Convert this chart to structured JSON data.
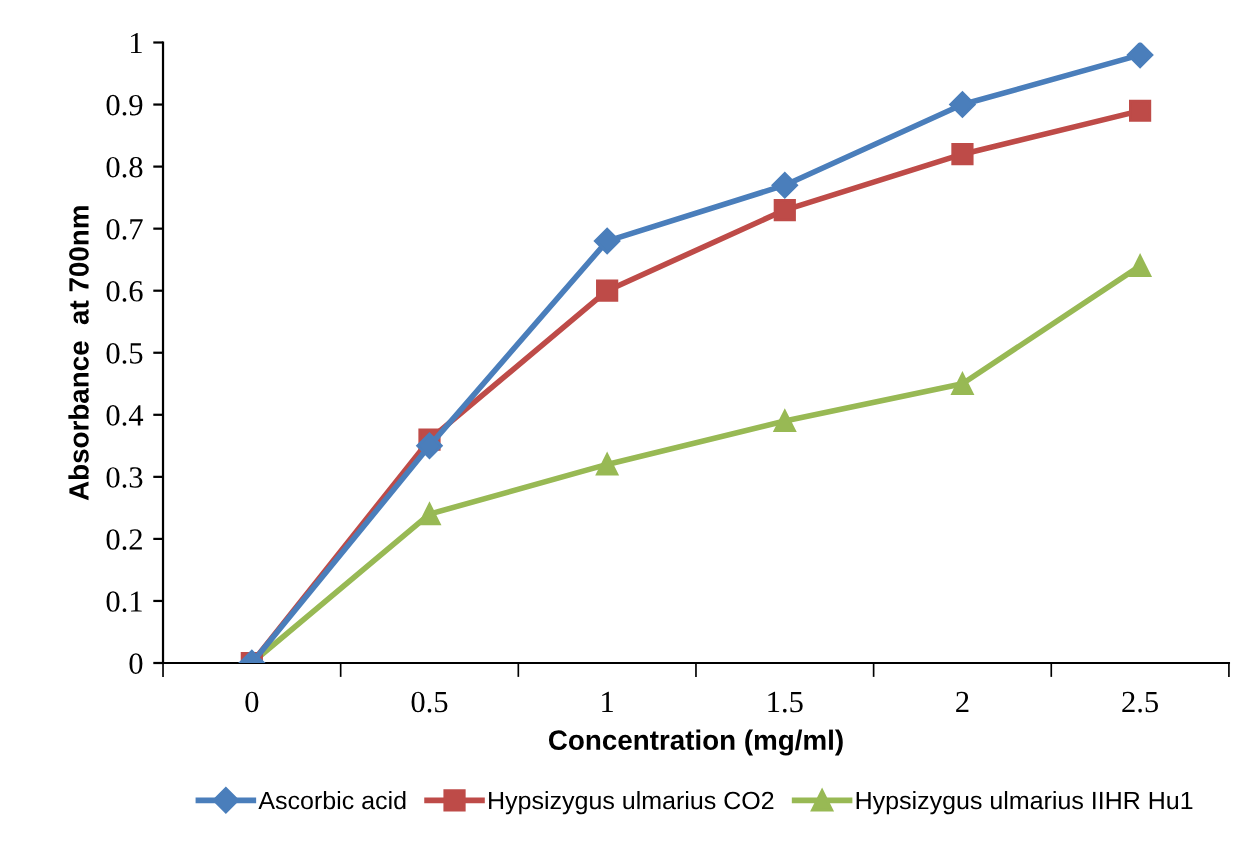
{
  "chart_data": {
    "type": "line",
    "xlabel": "Concentration (mg/ml)",
    "ylabel": "Absorbance  at 700nm",
    "categories": [
      "0",
      "0.5",
      "1",
      "1.5",
      "2",
      "2.5"
    ],
    "series": [
      {
        "name": "Ascorbic acid",
        "color": "#4a7ebb",
        "marker": "diamond",
        "values": [
          0,
          0.35,
          0.68,
          0.77,
          0.9,
          0.98
        ]
      },
      {
        "name": "Hypsizygus ulmarius CO2",
        "color": "#be4b48",
        "marker": "square",
        "values": [
          0,
          0.36,
          0.6,
          0.73,
          0.82,
          0.89
        ]
      },
      {
        "name": "Hypsizygus ulmarius IIHR Hu1",
        "color": "#98b954",
        "marker": "triangle",
        "values": [
          0,
          0.24,
          0.32,
          0.39,
          0.45,
          0.64
        ]
      }
    ],
    "ylim": [
      0,
      1
    ],
    "yticks": [
      0,
      0.1,
      0.2,
      0.3,
      0.4,
      0.5,
      0.6,
      0.7,
      0.8,
      0.9,
      1
    ],
    "grid": false,
    "legend": "bottom",
    "line_style": "solid"
  }
}
